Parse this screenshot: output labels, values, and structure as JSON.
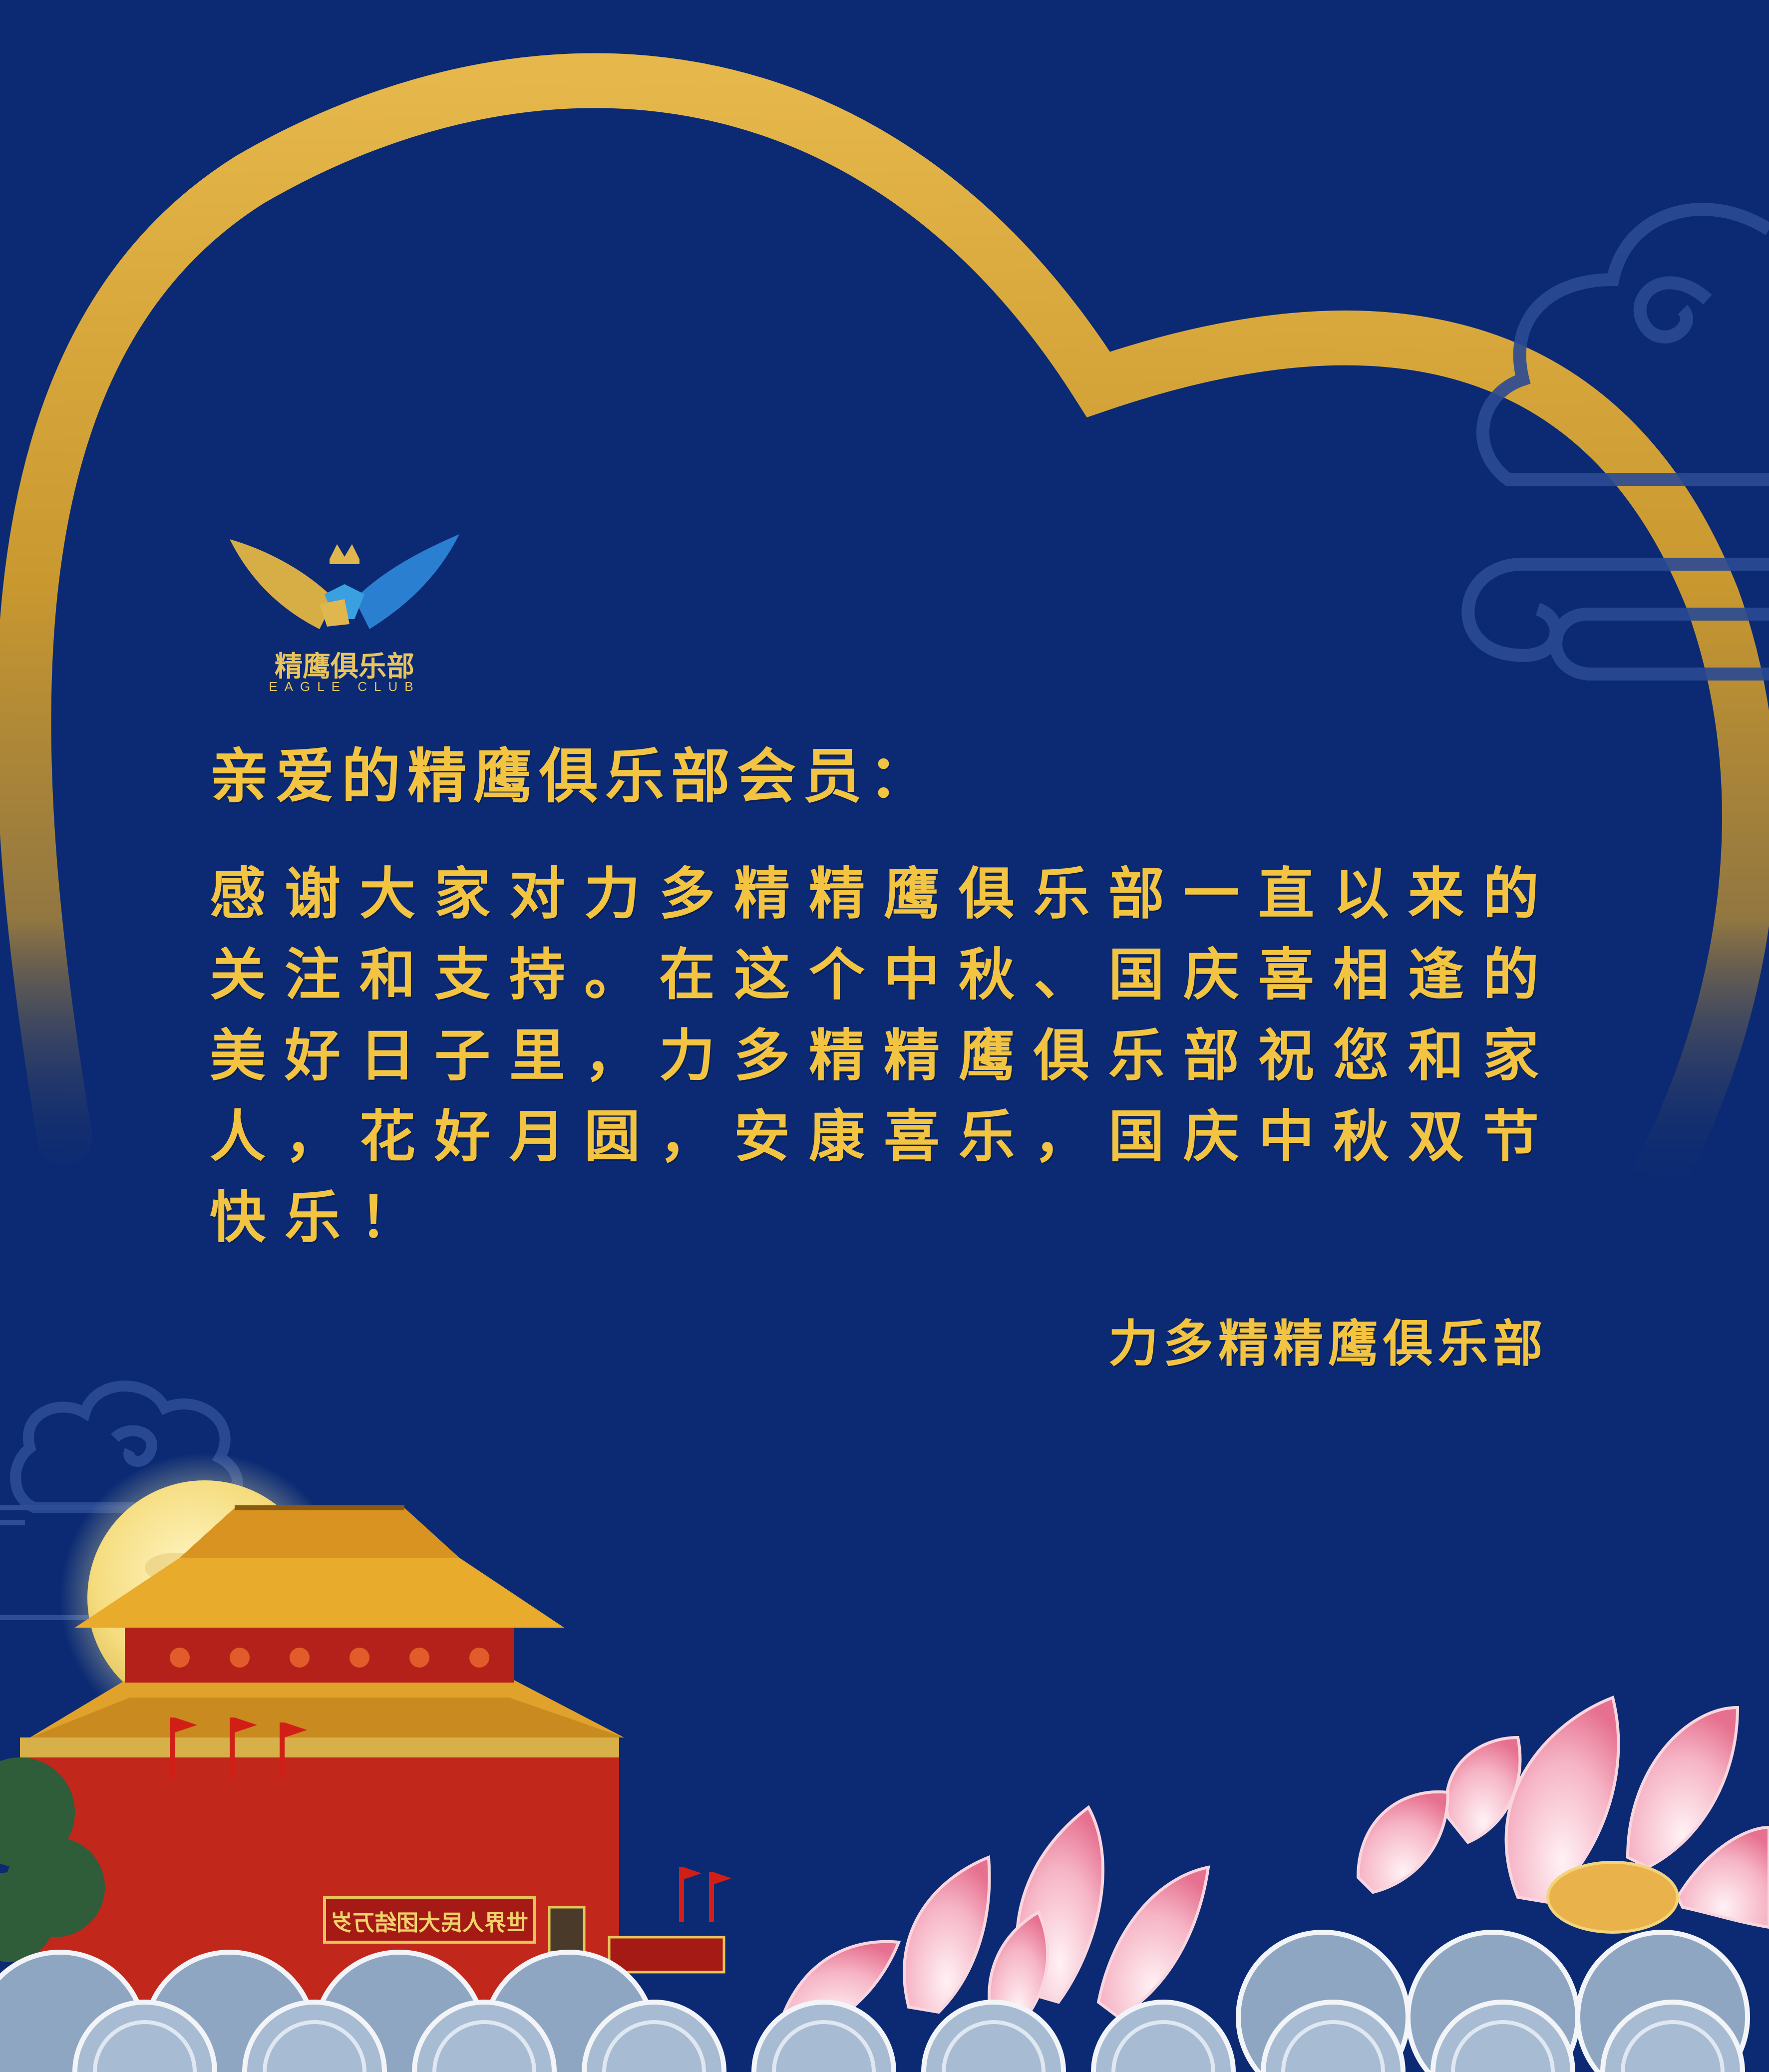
{
  "logo": {
    "name": "精鹰俱乐部",
    "subtitle": "EAGLE CLUB"
  },
  "greeting": "亲爱的精鹰俱乐部会员：",
  "message": "感谢大家对力多精精鹰俱乐部一直以来的关注和支持。在这个中秋、国庆喜相逢的美好日子里，力多精精鹰俱乐部祝您和家人，花好月圆，安康喜乐，国庆中秋双节快乐！",
  "signature": "力多精精鹰俱乐部",
  "gate": {
    "banner_text": "世界人民大团结万岁"
  },
  "colors": {
    "background": "#0b2a73",
    "gold_text": "#f2c441",
    "heart_gold": "#d6a83a",
    "moon": "#f8e79a",
    "gate_red": "#c1271b",
    "lotus_pink": "#f4a9bd"
  }
}
